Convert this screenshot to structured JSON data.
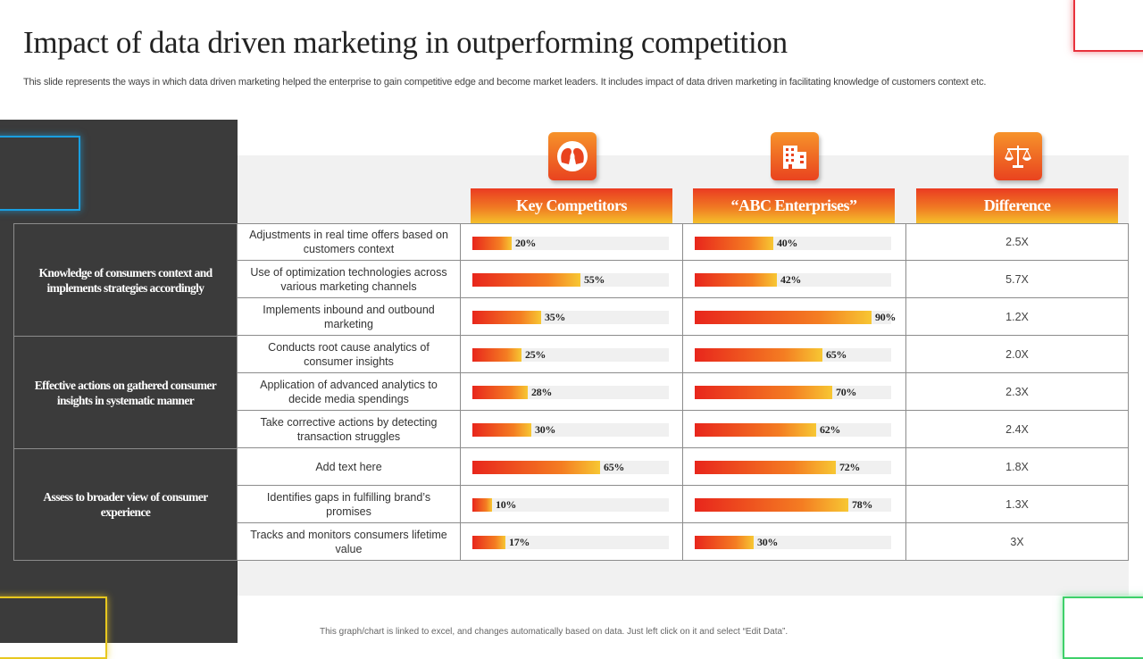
{
  "title": "Impact of data driven marketing in outperforming competition",
  "subtitle": "This slide represents the ways in which data driven marketing helped the enterprise to gain competitive edge and become market leaders. It includes impact of data driven marketing in facilitating knowledge of customers context etc.",
  "columns": [
    {
      "label": "Key Competitors",
      "icon": "people-heads-icon"
    },
    {
      "label": "“ABC Enterprises”",
      "icon": "building-icon"
    },
    {
      "label": "Difference",
      "icon": "scales-icon"
    }
  ],
  "groups": [
    {
      "label": "Knowledge of consumers context and implements strategies accordingly",
      "rows": 3
    },
    {
      "label": "Effective actions on gathered consumer insights in systematic manner",
      "rows": 3
    },
    {
      "label": "Assess to broader view of consumer experience",
      "rows": 3
    }
  ],
  "rows": [
    {
      "desc": "Adjustments in real time offers  based on customers context",
      "kc": 20,
      "kc_label": "20%",
      "abc": 40,
      "abc_label": "40%",
      "diff": "2.5X"
    },
    {
      "desc": "Use of optimization technologies across various  marketing channels",
      "kc": 55,
      "kc_label": "55%",
      "abc": 42,
      "abc_label": "42%",
      "diff": "5.7X"
    },
    {
      "desc": "Implements inbound and outbound  marketing",
      "kc": 35,
      "kc_label": "35%",
      "abc": 90,
      "abc_label": "90%",
      "diff": "1.2X"
    },
    {
      "desc": "Conducts root cause analytics of consumer insights",
      "kc": 25,
      "kc_label": "25%",
      "abc": 65,
      "abc_label": "65%",
      "diff": "2.0X"
    },
    {
      "desc": "Application of advanced  analytics to decide media spendings",
      "kc": 28,
      "kc_label": "28%",
      "abc": 70,
      "abc_label": "70%",
      "diff": "2.3X"
    },
    {
      "desc": "Take corrective actions by detecting transaction struggles",
      "kc": 30,
      "kc_label": "30%",
      "abc": 62,
      "abc_label": "62%",
      "diff": "2.4X"
    },
    {
      "desc": "Add text here",
      "kc": 65,
      "kc_label": "65%",
      "abc": 72,
      "abc_label": "72%",
      "diff": "1.8X"
    },
    {
      "desc": "Identifies  gaps in fulfilling brand’s promises",
      "kc": 10,
      "kc_label": "10%",
      "abc": 78,
      "abc_label": "78%",
      "diff": "1.3X"
    },
    {
      "desc": "Tracks and monitors consumers lifetime value",
      "kc": 17,
      "kc_label": "17%",
      "abc": 30,
      "abc_label": "30%",
      "diff": "3X"
    }
  ],
  "footer": "This graph/chart is linked to excel, and changes automatically based on data. Just left click on it and select “Edit Data”.",
  "colors": {
    "accent_red": "#e8261c",
    "accent_orange": "#f47d22",
    "accent_yellow": "#f7c733",
    "dark": "#3b3b3b"
  }
}
